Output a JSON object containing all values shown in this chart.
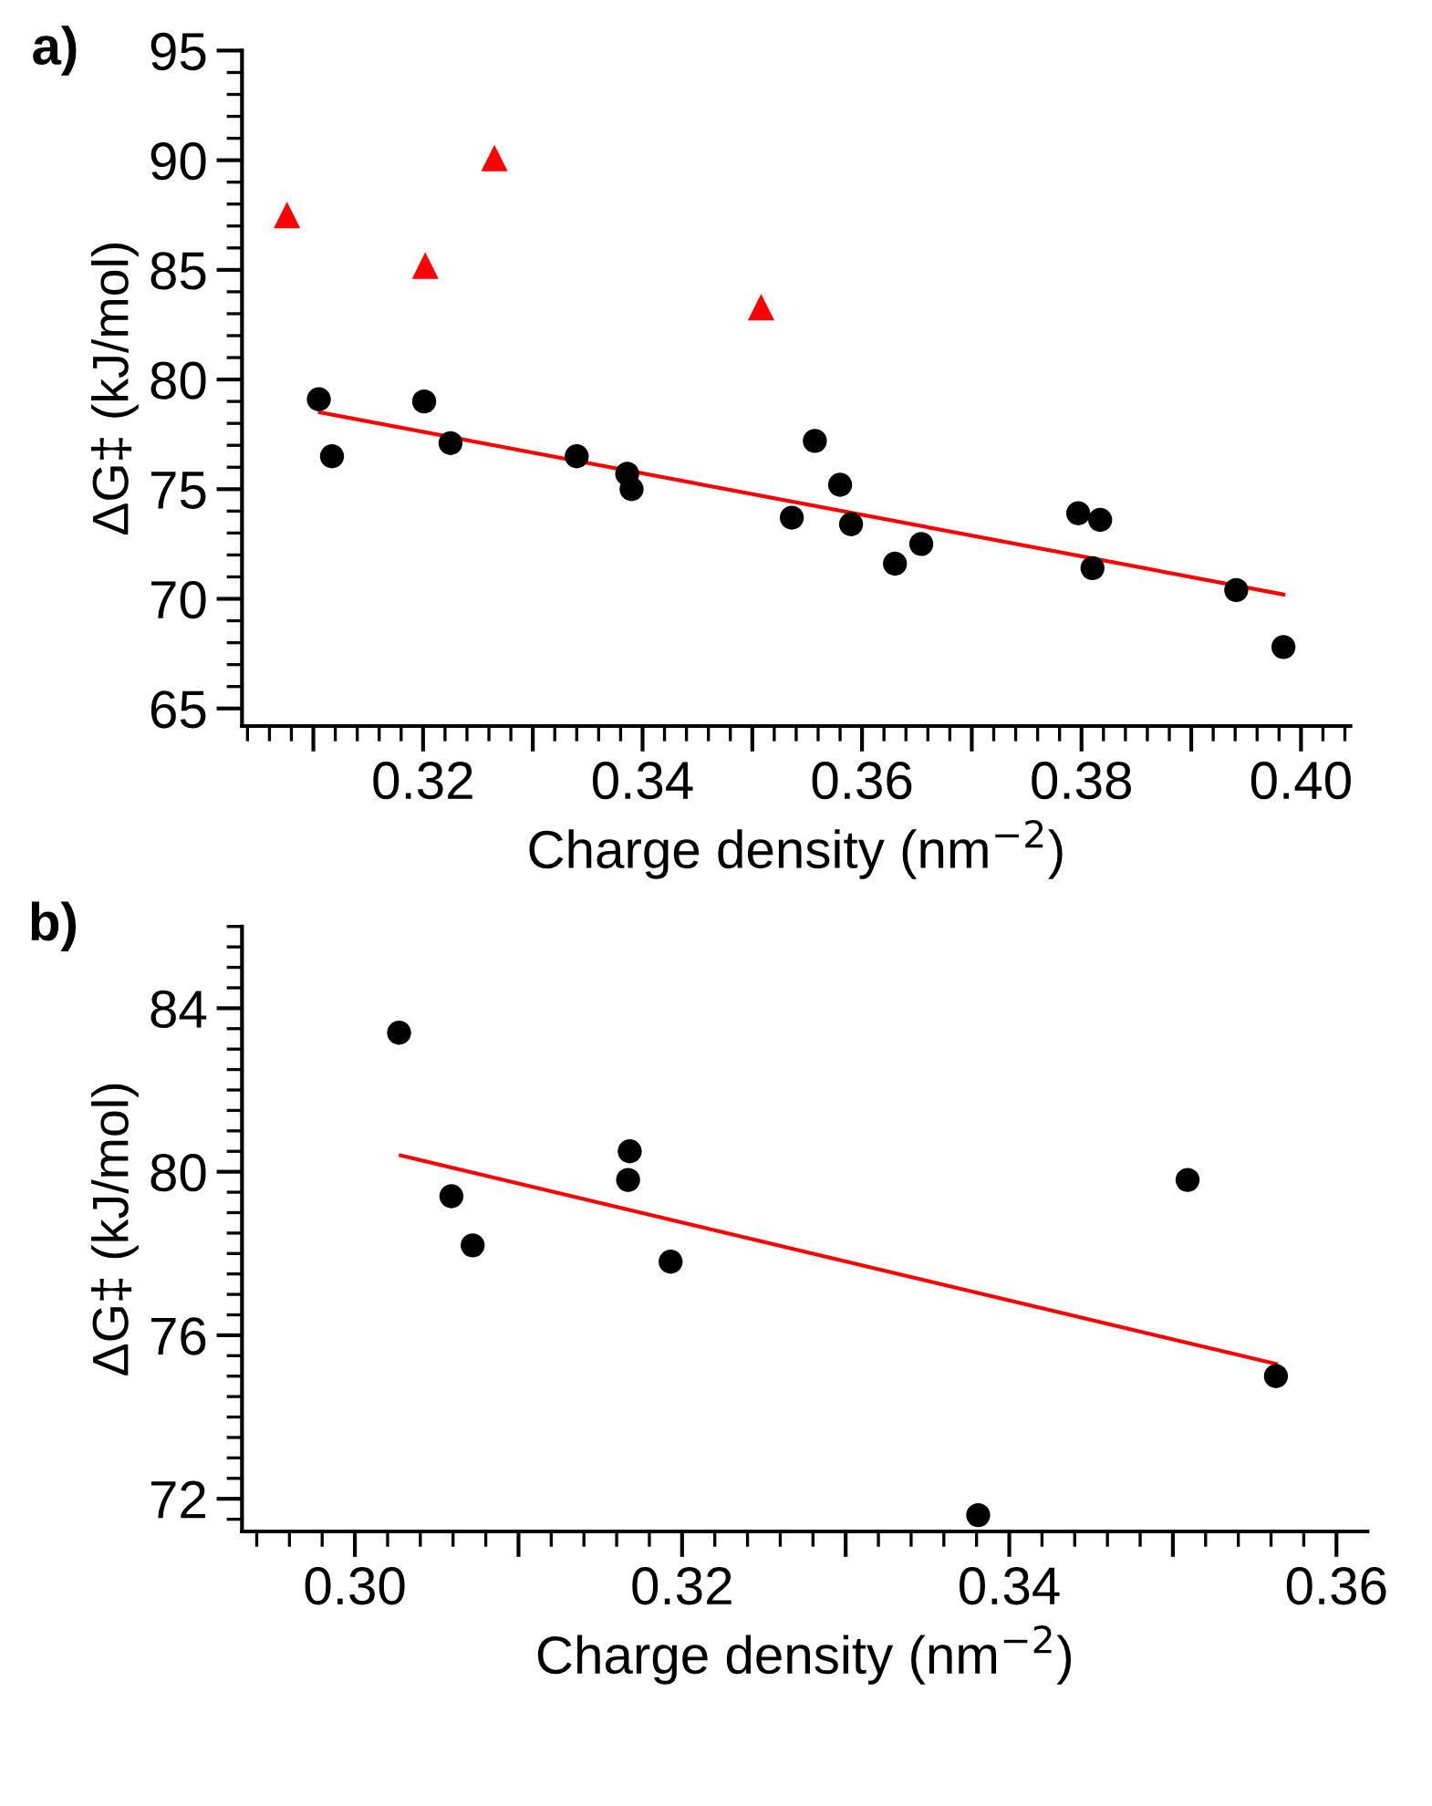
{
  "chart_data": [
    {
      "type": "scatter",
      "title": "a)",
      "xlabel": "Charge density (nm$^{−2}$)",
      "ylabel": "ΔG‡ (kJ/mol)",
      "xlim": [
        0.3035,
        0.4045
      ],
      "ylim": [
        64.2,
        95
      ],
      "xticks": [
        {
          "value": 0.31,
          "label": null
        },
        0.32,
        {
          "value": 0.33,
          "label": null
        },
        0.34,
        {
          "value": 0.35,
          "label": null
        },
        0.36,
        {
          "value": 0.37,
          "label": null
        },
        0.38,
        {
          "value": 0.39,
          "label": null
        },
        {
          "value": 0.4,
          "label": "0.40"
        }
      ],
      "yticks": [
        65,
        70,
        75,
        80,
        85,
        90,
        95
      ],
      "grid": false,
      "legend": false,
      "series": [
        {
          "marker": "triangle",
          "color": "#ff0000",
          "x": [
            0.3076,
            0.3202,
            0.3265,
            0.3508
          ],
          "values": [
            87.5,
            85.2,
            90.1,
            83.3
          ]
        },
        {
          "marker": "circle",
          "color": "#000000",
          "x": [
            0.3105,
            0.3117,
            0.3201,
            0.3225,
            0.334,
            0.3386,
            0.339,
            0.3536,
            0.3557,
            0.358,
            0.359,
            0.363,
            0.3654,
            0.3797,
            0.3817,
            0.381,
            0.3941,
            0.3984
          ],
          "values": [
            79.1,
            76.5,
            79.0,
            77.1,
            76.5,
            75.7,
            75.0,
            73.7,
            77.2,
            75.2,
            73.4,
            71.6,
            72.5,
            73.9,
            73.6,
            71.4,
            70.4,
            67.8
          ]
        },
        {
          "type": "line",
          "marker": "none",
          "line_style": "solid",
          "color": "#ff0000",
          "x": [
            0.3106,
            0.3984
          ],
          "values": [
            78.5,
            70.2
          ]
        }
      ]
    },
    {
      "type": "scatter",
      "title": "b)",
      "xlabel": "Charge density (nm$^{−2}$)",
      "ylabel": "ΔG‡ (kJ/mol)",
      "xlim": [
        0.2931,
        0.3619
      ],
      "ylim": [
        71.2,
        86
      ],
      "xticks": [
        {
          "value": 0.3,
          "label": "0.30"
        },
        {
          "value": 0.31,
          "label": null
        },
        0.32,
        {
          "value": 0.33,
          "label": null
        },
        0.34,
        {
          "value": 0.35,
          "label": null
        },
        0.36
      ],
      "yticks": [
        72,
        76,
        80,
        84
      ],
      "grid": false,
      "legend": false,
      "series": [
        {
          "marker": "circle",
          "color": "#000000",
          "x": [
            0.3027,
            0.3059,
            0.3072,
            0.3168,
            0.3167,
            0.3193,
            0.3381,
            0.3509,
            0.3563
          ],
          "values": [
            83.4,
            79.4,
            78.2,
            80.5,
            79.8,
            77.8,
            71.6,
            79.8,
            75.0
          ]
        },
        {
          "type": "line",
          "marker": "none",
          "line_style": "solid",
          "color": "#ff0000",
          "x": [
            0.3028,
            0.3563
          ],
          "values": [
            80.4,
            75.3
          ]
        }
      ]
    }
  ]
}
